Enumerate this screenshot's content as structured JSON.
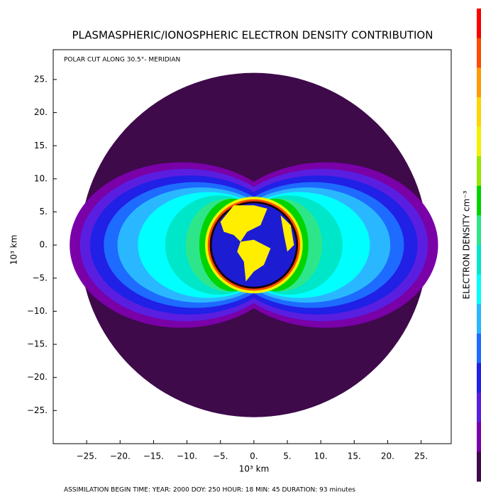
{
  "chart_data": {
    "type": "contour",
    "title": "PLASMASPHERIC/IONOSPHERIC ELECTRON DENSITY CONTRIBUTION",
    "subtitle": "POLAR CUT ALONG  30.5°- MERIDIAN",
    "x_label": "10³ km",
    "y_label": "10³ km",
    "colorbar_label": "ELECTRON DENSITY cm⁻³",
    "footer": "ASSIMILATION BEGIN TIME: YEAR: 2000 DOY: 250 HOUR: 18 MIN: 45   DURATION: 93 minutes",
    "xlim": [
      -30,
      29.5
    ],
    "ylim": [
      -30,
      29.5
    ],
    "xticks": [
      {
        "value": -25,
        "label": "−25."
      },
      {
        "value": -20,
        "label": "−20."
      },
      {
        "value": -15,
        "label": "−15."
      },
      {
        "value": -10,
        "label": "−10."
      },
      {
        "value": -5,
        "label": "−5."
      },
      {
        "value": 0,
        "label": "0."
      },
      {
        "value": 5,
        "label": "5."
      },
      {
        "value": 10,
        "label": "10."
      },
      {
        "value": 15,
        "label": "15."
      },
      {
        "value": 20,
        "label": "20."
      },
      {
        "value": 25,
        "label": "25."
      }
    ],
    "yticks": [
      {
        "value": 25,
        "label": "25."
      },
      {
        "value": 20,
        "label": "20."
      },
      {
        "value": 15,
        "label": "15."
      },
      {
        "value": 10,
        "label": "10."
      },
      {
        "value": 5,
        "label": "5."
      },
      {
        "value": 0,
        "label": "0."
      },
      {
        "value": -5,
        "label": "−5."
      },
      {
        "value": -10,
        "label": "−10."
      },
      {
        "value": -15,
        "label": "−15."
      },
      {
        "value": -20,
        "label": "−20."
      },
      {
        "value": -25,
        "label": "−25."
      }
    ],
    "colorbar_colors": [
      "#ff0000",
      "#ff4a00",
      "#ff9a00",
      "#ffd400",
      "#f2f200",
      "#9ae600",
      "#00d400",
      "#2ee68a",
      "#00e6c8",
      "#00ffff",
      "#29b8ff",
      "#1e6bff",
      "#2020e6",
      "#5a1ee0",
      "#7a00a8",
      "#3e0a4a"
    ]
  }
}
